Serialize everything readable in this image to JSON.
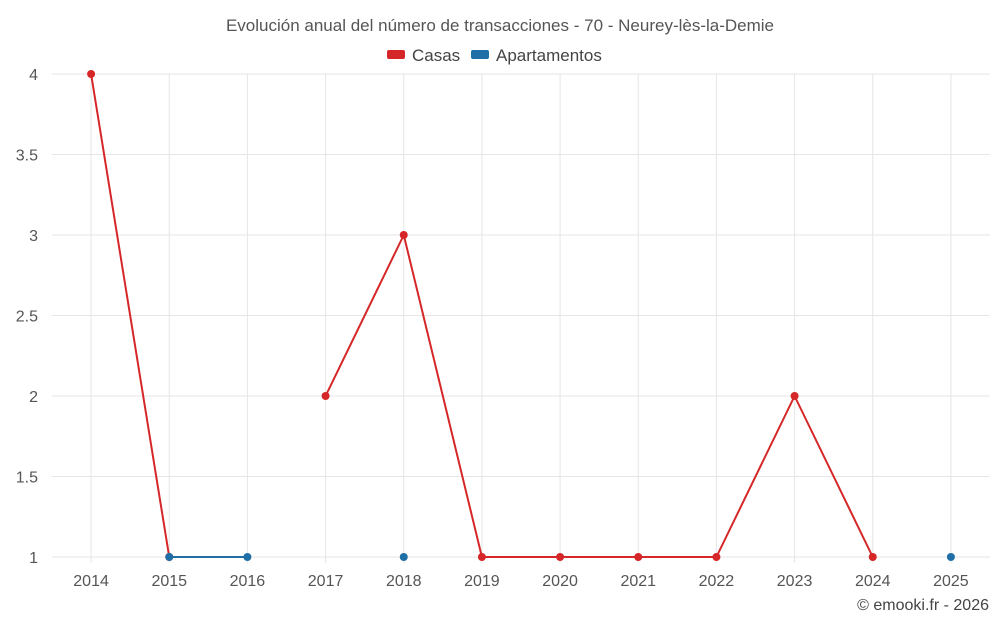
{
  "chart_data": {
    "type": "line",
    "title": "Evolución anual del número de transacciones - 70 - Neurey-lès-la-Demie",
    "xlabel": "",
    "ylabel": "",
    "categories": [
      "2014",
      "2015",
      "2016",
      "2017",
      "2018",
      "2019",
      "2020",
      "2021",
      "2022",
      "2023",
      "2024",
      "2025"
    ],
    "ylim": [
      1,
      4
    ],
    "yticks": [
      "1",
      "1.5",
      "2",
      "2.5",
      "3",
      "3.5",
      "4"
    ],
    "grid": true,
    "legend_position": "top",
    "series": [
      {
        "name": "Casas",
        "color": "#d62728",
        "values": [
          4,
          1,
          null,
          2,
          3,
          1,
          1,
          1,
          1,
          2,
          1,
          null
        ]
      },
      {
        "name": "Apartamentos",
        "color": "#1f6fa6",
        "values": [
          null,
          1,
          1,
          null,
          1,
          null,
          null,
          null,
          null,
          null,
          null,
          1
        ]
      }
    ]
  },
  "credit": "© emooki.fr - 2026"
}
